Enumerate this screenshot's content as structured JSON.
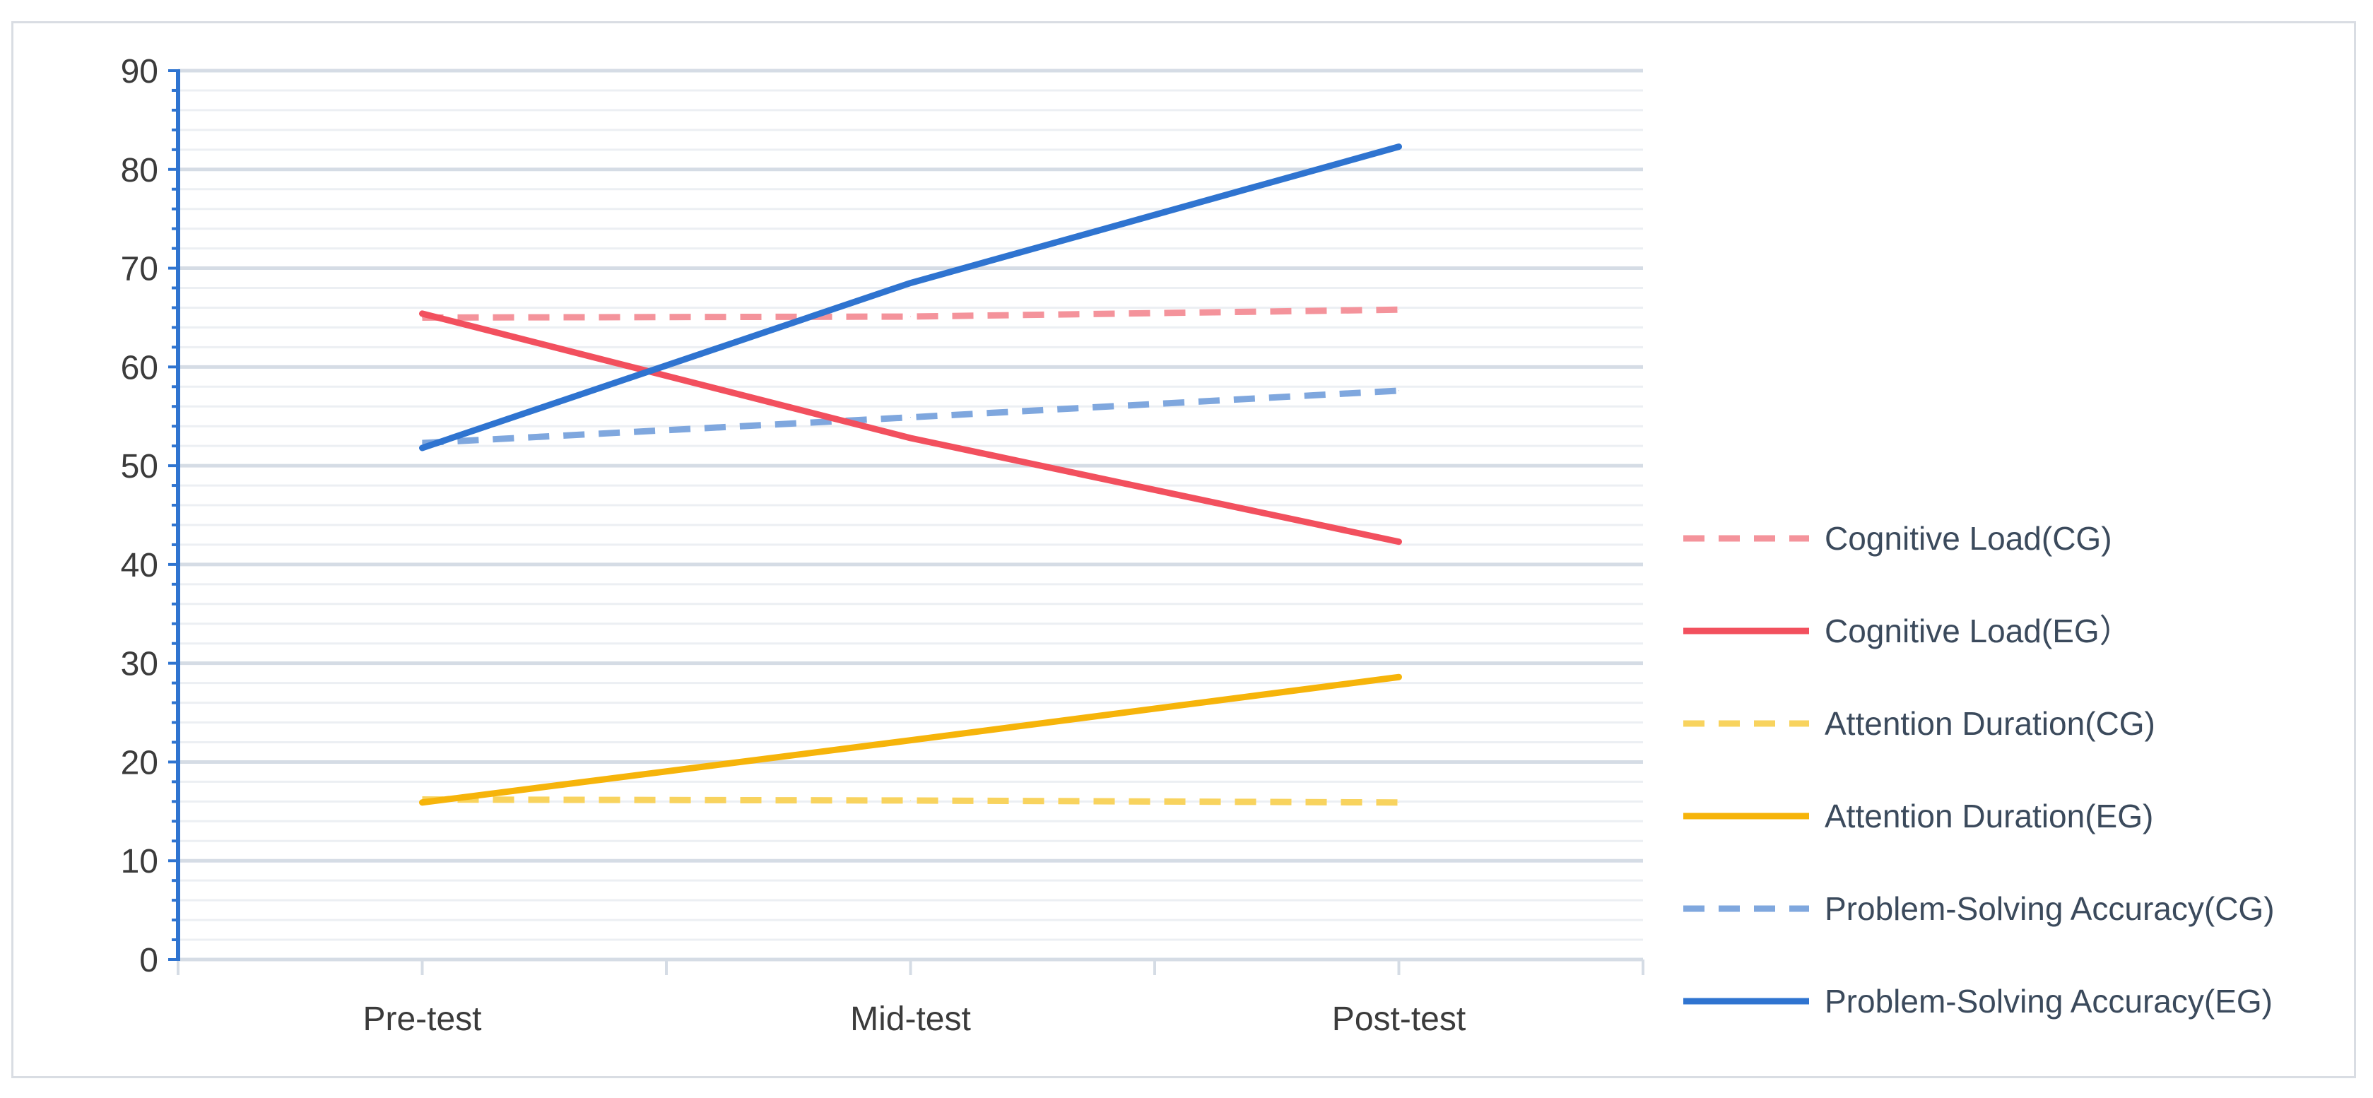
{
  "chart_data": {
    "type": "line",
    "title": "",
    "xlabel": "",
    "ylabel": "",
    "categories": [
      "Pre-test",
      "Mid-test",
      "Post-test"
    ],
    "ylim": [
      0,
      90
    ],
    "yticks": [
      "0",
      "10",
      "20",
      "30",
      "40",
      "50",
      "60",
      "70",
      "80",
      "90"
    ],
    "grid": true,
    "legend_position": "right",
    "series": [
      {
        "name": "Cognitive Load(CG)",
        "values": [
          65.0,
          65.1,
          65.8
        ],
        "color": "#f4939b",
        "dashed": true
      },
      {
        "name": "Cognitive Load(EG）",
        "values": [
          65.4,
          52.8,
          42.3
        ],
        "color": "#f2505e",
        "dashed": false
      },
      {
        "name": "Attention Duration(CG)",
        "values": [
          16.2,
          16.1,
          15.9
        ],
        "color": "#f8d35e",
        "dashed": true
      },
      {
        "name": "Attention Duration(EG)",
        "values": [
          15.9,
          22.2,
          28.6
        ],
        "color": "#f6b40a",
        "dashed": false
      },
      {
        "name": "Problem-Solving Accuracy(CG)",
        "values": [
          52.3,
          54.9,
          57.6
        ],
        "color": "#7fa7de",
        "dashed": true
      },
      {
        "name": "Problem-Solving Accuracy(EG)",
        "values": [
          51.8,
          68.5,
          82.3
        ],
        "color": "#2f74d0",
        "dashed": false
      }
    ]
  }
}
